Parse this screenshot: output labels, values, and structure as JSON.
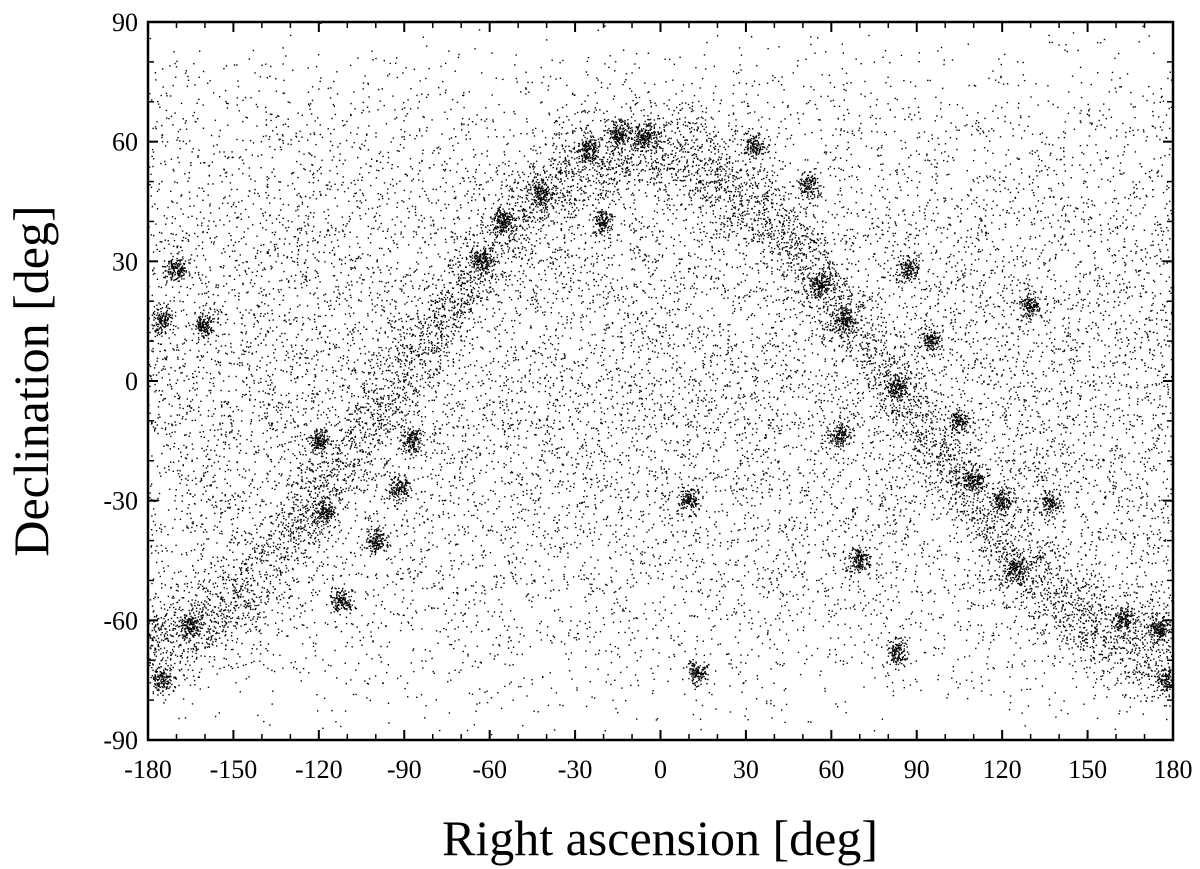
{
  "chart_data": {
    "type": "scatter",
    "title": "",
    "xlabel": "Right ascension [deg]",
    "ylabel": "Declination [deg]",
    "xlim": [
      -180,
      180
    ],
    "ylim": [
      -90,
      90
    ],
    "xticks": [
      "-180",
      "-150",
      "-120",
      "-90",
      "-60",
      "-30",
      "0",
      "30",
      "60",
      "90",
      "120",
      "150",
      "180"
    ],
    "yticks": [
      "90",
      "60",
      "30",
      "0",
      "-30",
      "-60",
      "-90"
    ],
    "grid": false,
    "legend": "none",
    "marker_color": "#000000",
    "background": "uniform random scatter of point sources over the full sky, denser toward the band of the Galactic plane",
    "dense_regions": [
      {
        "x": -165,
        "y": -61
      },
      {
        "x": -175,
        "y": -75
      },
      {
        "x": -175,
        "y": 15
      },
      {
        "x": -170,
        "y": 28
      },
      {
        "x": -160,
        "y": 14
      },
      {
        "x": -120,
        "y": -15
      },
      {
        "x": -118,
        "y": -33
      },
      {
        "x": -112,
        "y": -55
      },
      {
        "x": -100,
        "y": -40
      },
      {
        "x": -92,
        "y": -27
      },
      {
        "x": -87,
        "y": -15
      },
      {
        "x": -63,
        "y": 30
      },
      {
        "x": -55,
        "y": 40
      },
      {
        "x": -42,
        "y": 47
      },
      {
        "x": -25,
        "y": 58
      },
      {
        "x": -15,
        "y": 62
      },
      {
        "x": -5,
        "y": 61
      },
      {
        "x": -20,
        "y": 40
      },
      {
        "x": 10,
        "y": -30
      },
      {
        "x": 13,
        "y": -73
      },
      {
        "x": 33,
        "y": 59
      },
      {
        "x": 52,
        "y": 49
      },
      {
        "x": 56,
        "y": 24
      },
      {
        "x": 65,
        "y": 15
      },
      {
        "x": 63,
        "y": -14
      },
      {
        "x": 70,
        "y": -45
      },
      {
        "x": 83,
        "y": -2
      },
      {
        "x": 83,
        "y": -68
      },
      {
        "x": 87,
        "y": 28
      },
      {
        "x": 95,
        "y": 10
      },
      {
        "x": 105,
        "y": -10
      },
      {
        "x": 110,
        "y": -25
      },
      {
        "x": 120,
        "y": -30
      },
      {
        "x": 125,
        "y": -47
      },
      {
        "x": 130,
        "y": 19
      },
      {
        "x": 137,
        "y": -31
      },
      {
        "x": 163,
        "y": -60
      },
      {
        "x": 175,
        "y": -62
      },
      {
        "x": 178,
        "y": -75
      }
    ]
  }
}
